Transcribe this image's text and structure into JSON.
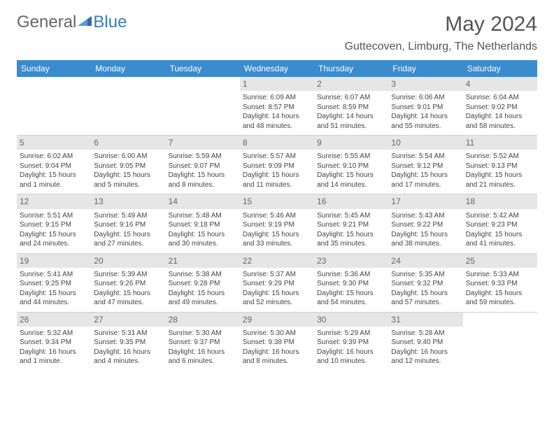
{
  "branding": {
    "logo_word1": "General",
    "logo_word2": "Blue",
    "logo_color_gray": "#666666",
    "logo_color_blue": "#3b7bbf",
    "logo_triangle_color": "#2a6bb0"
  },
  "title": "May 2024",
  "location": "Guttecoven, Limburg, The Netherlands",
  "styling": {
    "header_bg": "#3b8bcf",
    "header_text": "#ffffff",
    "daynum_bg": "#e6e6e6",
    "daynum_text": "#666666",
    "body_text": "#444444",
    "week_border": "#d0d0d0",
    "cell_fontsize": 10,
    "weekday_fontsize": 12
  },
  "weekdays": [
    "Sunday",
    "Monday",
    "Tuesday",
    "Wednesday",
    "Thursday",
    "Friday",
    "Saturday"
  ],
  "weeks": [
    [
      {
        "empty": true
      },
      {
        "empty": true
      },
      {
        "empty": true
      },
      {
        "num": "1",
        "sunrise": "Sunrise: 6:09 AM",
        "sunset": "Sunset: 8:57 PM",
        "daylight": "Daylight: 14 hours and 48 minutes."
      },
      {
        "num": "2",
        "sunrise": "Sunrise: 6:07 AM",
        "sunset": "Sunset: 8:59 PM",
        "daylight": "Daylight: 14 hours and 51 minutes."
      },
      {
        "num": "3",
        "sunrise": "Sunrise: 6:06 AM",
        "sunset": "Sunset: 9:01 PM",
        "daylight": "Daylight: 14 hours and 55 minutes."
      },
      {
        "num": "4",
        "sunrise": "Sunrise: 6:04 AM",
        "sunset": "Sunset: 9:02 PM",
        "daylight": "Daylight: 14 hours and 58 minutes."
      }
    ],
    [
      {
        "num": "5",
        "sunrise": "Sunrise: 6:02 AM",
        "sunset": "Sunset: 9:04 PM",
        "daylight": "Daylight: 15 hours and 1 minute."
      },
      {
        "num": "6",
        "sunrise": "Sunrise: 6:00 AM",
        "sunset": "Sunset: 9:05 PM",
        "daylight": "Daylight: 15 hours and 5 minutes."
      },
      {
        "num": "7",
        "sunrise": "Sunrise: 5:59 AM",
        "sunset": "Sunset: 9:07 PM",
        "daylight": "Daylight: 15 hours and 8 minutes."
      },
      {
        "num": "8",
        "sunrise": "Sunrise: 5:57 AM",
        "sunset": "Sunset: 9:09 PM",
        "daylight": "Daylight: 15 hours and 11 minutes."
      },
      {
        "num": "9",
        "sunrise": "Sunrise: 5:55 AM",
        "sunset": "Sunset: 9:10 PM",
        "daylight": "Daylight: 15 hours and 14 minutes."
      },
      {
        "num": "10",
        "sunrise": "Sunrise: 5:54 AM",
        "sunset": "Sunset: 9:12 PM",
        "daylight": "Daylight: 15 hours and 17 minutes."
      },
      {
        "num": "11",
        "sunrise": "Sunrise: 5:52 AM",
        "sunset": "Sunset: 9:13 PM",
        "daylight": "Daylight: 15 hours and 21 minutes."
      }
    ],
    [
      {
        "num": "12",
        "sunrise": "Sunrise: 5:51 AM",
        "sunset": "Sunset: 9:15 PM",
        "daylight": "Daylight: 15 hours and 24 minutes."
      },
      {
        "num": "13",
        "sunrise": "Sunrise: 5:49 AM",
        "sunset": "Sunset: 9:16 PM",
        "daylight": "Daylight: 15 hours and 27 minutes."
      },
      {
        "num": "14",
        "sunrise": "Sunrise: 5:48 AM",
        "sunset": "Sunset: 9:18 PM",
        "daylight": "Daylight: 15 hours and 30 minutes."
      },
      {
        "num": "15",
        "sunrise": "Sunrise: 5:46 AM",
        "sunset": "Sunset: 9:19 PM",
        "daylight": "Daylight: 15 hours and 33 minutes."
      },
      {
        "num": "16",
        "sunrise": "Sunrise: 5:45 AM",
        "sunset": "Sunset: 9:21 PM",
        "daylight": "Daylight: 15 hours and 35 minutes."
      },
      {
        "num": "17",
        "sunrise": "Sunrise: 5:43 AM",
        "sunset": "Sunset: 9:22 PM",
        "daylight": "Daylight: 15 hours and 38 minutes."
      },
      {
        "num": "18",
        "sunrise": "Sunrise: 5:42 AM",
        "sunset": "Sunset: 9:23 PM",
        "daylight": "Daylight: 15 hours and 41 minutes."
      }
    ],
    [
      {
        "num": "19",
        "sunrise": "Sunrise: 5:41 AM",
        "sunset": "Sunset: 9:25 PM",
        "daylight": "Daylight: 15 hours and 44 minutes."
      },
      {
        "num": "20",
        "sunrise": "Sunrise: 5:39 AM",
        "sunset": "Sunset: 9:26 PM",
        "daylight": "Daylight: 15 hours and 47 minutes."
      },
      {
        "num": "21",
        "sunrise": "Sunrise: 5:38 AM",
        "sunset": "Sunset: 9:28 PM",
        "daylight": "Daylight: 15 hours and 49 minutes."
      },
      {
        "num": "22",
        "sunrise": "Sunrise: 5:37 AM",
        "sunset": "Sunset: 9:29 PM",
        "daylight": "Daylight: 15 hours and 52 minutes."
      },
      {
        "num": "23",
        "sunrise": "Sunrise: 5:36 AM",
        "sunset": "Sunset: 9:30 PM",
        "daylight": "Daylight: 15 hours and 54 minutes."
      },
      {
        "num": "24",
        "sunrise": "Sunrise: 5:35 AM",
        "sunset": "Sunset: 9:32 PM",
        "daylight": "Daylight: 15 hours and 57 minutes."
      },
      {
        "num": "25",
        "sunrise": "Sunrise: 5:33 AM",
        "sunset": "Sunset: 9:33 PM",
        "daylight": "Daylight: 15 hours and 59 minutes."
      }
    ],
    [
      {
        "num": "26",
        "sunrise": "Sunrise: 5:32 AM",
        "sunset": "Sunset: 9:34 PM",
        "daylight": "Daylight: 16 hours and 1 minute."
      },
      {
        "num": "27",
        "sunrise": "Sunrise: 5:31 AM",
        "sunset": "Sunset: 9:35 PM",
        "daylight": "Daylight: 16 hours and 4 minutes."
      },
      {
        "num": "28",
        "sunrise": "Sunrise: 5:30 AM",
        "sunset": "Sunset: 9:37 PM",
        "daylight": "Daylight: 16 hours and 6 minutes."
      },
      {
        "num": "29",
        "sunrise": "Sunrise: 5:30 AM",
        "sunset": "Sunset: 9:38 PM",
        "daylight": "Daylight: 16 hours and 8 minutes."
      },
      {
        "num": "30",
        "sunrise": "Sunrise: 5:29 AM",
        "sunset": "Sunset: 9:39 PM",
        "daylight": "Daylight: 16 hours and 10 minutes."
      },
      {
        "num": "31",
        "sunrise": "Sunrise: 5:28 AM",
        "sunset": "Sunset: 9:40 PM",
        "daylight": "Daylight: 16 hours and 12 minutes."
      },
      {
        "empty": true
      }
    ]
  ]
}
